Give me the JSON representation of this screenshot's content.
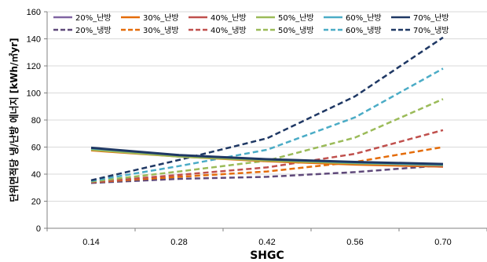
{
  "chart_data": {
    "type": "line",
    "xlabel": "SHGC",
    "ylabel": "단위면적당 냉/난방 에너지 [kWh/㎡yr]",
    "x": [
      "0.14",
      "0.28",
      "0.42",
      "0.56",
      "0.70"
    ],
    "yticks": [
      "0",
      "20",
      "40",
      "60",
      "80",
      "100",
      "120",
      "140",
      "160"
    ],
    "ylim": [
      0,
      160
    ],
    "grid": "horizontal",
    "legend_position": "top",
    "series": [
      {
        "name": "20%_난방",
        "style": "solid",
        "color": "#8064A2",
        "values": [
          58.5,
          53.5,
          50.0,
          47.5,
          45.5
        ]
      },
      {
        "name": "30%_난방",
        "style": "solid",
        "color": "#E46C0A",
        "values": [
          57.5,
          53.0,
          49.5,
          47.0,
          45.5
        ]
      },
      {
        "name": "40%_난방",
        "style": "solid",
        "color": "#C0504D",
        "values": [
          58.5,
          53.5,
          50.5,
          48.0,
          46.0
        ]
      },
      {
        "name": "50%_난방",
        "style": "solid",
        "color": "#9BBB59",
        "values": [
          58.0,
          53.0,
          50.0,
          48.0,
          46.5
        ]
      },
      {
        "name": "60%_난방",
        "style": "solid",
        "color": "#4BACC6",
        "values": [
          59.0,
          54.0,
          51.0,
          48.5,
          47.0
        ]
      },
      {
        "name": "70%_난방",
        "style": "solid",
        "color": "#1F3864",
        "values": [
          59.5,
          54.0,
          51.0,
          49.0,
          47.5
        ]
      },
      {
        "name": "20%_냉방",
        "style": "dashed",
        "color": "#5F497A",
        "values": [
          33.5,
          36.5,
          38.0,
          41.5,
          46.5
        ]
      },
      {
        "name": "30%_냉방",
        "style": "dashed",
        "color": "#E46C0A",
        "values": [
          34.0,
          38.0,
          42.0,
          49.0,
          60.0
        ]
      },
      {
        "name": "40%_냉방",
        "style": "dashed",
        "color": "#C0504D",
        "values": [
          34.0,
          39.5,
          45.0,
          55.0,
          72.5
        ]
      },
      {
        "name": "50%_냉방",
        "style": "dashed",
        "color": "#9BBB59",
        "values": [
          34.5,
          42.0,
          50.0,
          67.0,
          95.5
        ]
      },
      {
        "name": "60%_냉방",
        "style": "dashed",
        "color": "#4BACC6",
        "values": [
          35.0,
          46.0,
          58.0,
          82.0,
          118.0
        ]
      },
      {
        "name": "70%_냉방",
        "style": "dashed",
        "color": "#1F3864",
        "values": [
          35.5,
          50.5,
          66.5,
          97.5,
          141.0
        ]
      }
    ]
  }
}
